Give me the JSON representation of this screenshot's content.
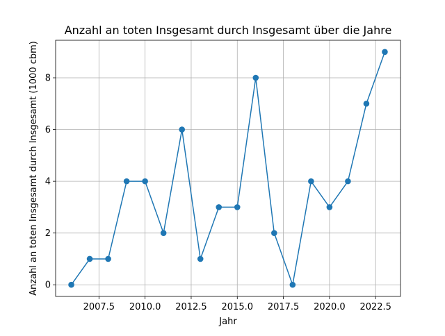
{
  "chart_data": {
    "type": "line",
    "title": "Anzahl an toten Insgesamt durch Insgesamt über die Jahre",
    "xlabel": "Jahr",
    "ylabel": "Anzahl an toten Insgesamt durch Insgesamt (1000 cbm)",
    "x": [
      2006,
      2007,
      2008,
      2009,
      2010,
      2011,
      2012,
      2013,
      2014,
      2015,
      2016,
      2017,
      2018,
      2019,
      2020,
      2021,
      2022,
      2023
    ],
    "series": [
      {
        "values": [
          0,
          1,
          1,
          4,
          4,
          2,
          6,
          1,
          3,
          3,
          8,
          2,
          0,
          4,
          3,
          4,
          7,
          9
        ],
        "color": "#1f77b4",
        "marker": "circle"
      }
    ],
    "xlim": [
      2005.15,
      2023.85
    ],
    "ylim": [
      -0.45,
      9.45
    ],
    "xticks": [
      2007.5,
      2010.0,
      2012.5,
      2015.0,
      2017.5,
      2020.0,
      2022.5
    ],
    "xtick_labels": [
      "2007.5",
      "2010.0",
      "2012.5",
      "2015.0",
      "2017.5",
      "2020.0",
      "2022.5"
    ],
    "yticks": [
      0,
      2,
      4,
      6,
      8
    ],
    "ytick_labels": [
      "0",
      "2",
      "4",
      "6",
      "8"
    ],
    "grid": true,
    "legend": "none"
  }
}
